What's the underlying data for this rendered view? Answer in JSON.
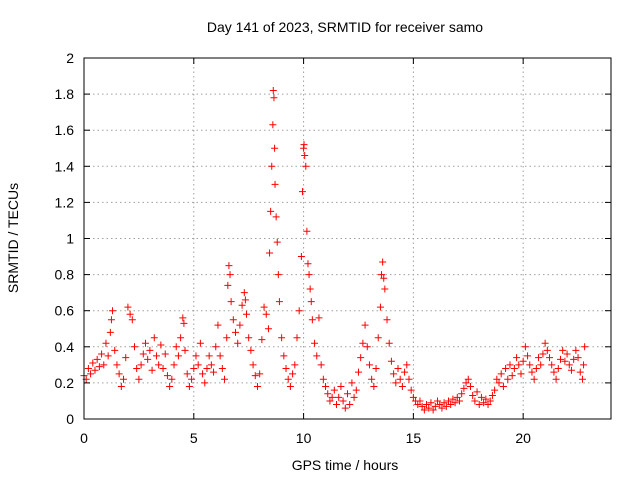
{
  "chart_data": {
    "type": "scatter",
    "title": "Day 141 of 2023, SRMTID for receiver samo",
    "xlabel": "GPS time / hours",
    "ylabel": "SRMTID / TECUs",
    "xlim": [
      0,
      24
    ],
    "ylim": [
      0,
      2
    ],
    "xticks": [
      "0",
      "5",
      "10",
      "15",
      "20"
    ],
    "yticks": [
      "0",
      "0.2",
      "0.4",
      "0.6",
      "0.8",
      "1",
      "1.2",
      "1.4",
      "1.6",
      "1.8",
      "2"
    ],
    "marker": "plus",
    "color": "#ff0000",
    "series": [
      {
        "name": "SRMTID",
        "points": [
          [
            0.0,
            0.24
          ],
          [
            0.1,
            0.22
          ],
          [
            0.2,
            0.28
          ],
          [
            0.3,
            0.25
          ],
          [
            0.4,
            0.31
          ],
          [
            0.5,
            0.27
          ],
          [
            0.6,
            0.33
          ],
          [
            0.7,
            0.29
          ],
          [
            0.8,
            0.36
          ],
          [
            0.9,
            0.3
          ],
          [
            1.0,
            0.42
          ],
          [
            1.1,
            0.35
          ],
          [
            1.2,
            0.48
          ],
          [
            1.25,
            0.55
          ],
          [
            1.3,
            0.6
          ],
          [
            1.4,
            0.38
          ],
          [
            1.5,
            0.3
          ],
          [
            1.6,
            0.25
          ],
          [
            1.7,
            0.18
          ],
          [
            1.8,
            0.22
          ],
          [
            1.9,
            0.34
          ],
          [
            2.0,
            0.62
          ],
          [
            2.1,
            0.58
          ],
          [
            2.2,
            0.55
          ],
          [
            2.3,
            0.4
          ],
          [
            2.4,
            0.28
          ],
          [
            2.5,
            0.22
          ],
          [
            2.6,
            0.3
          ],
          [
            2.7,
            0.36
          ],
          [
            2.8,
            0.42
          ],
          [
            2.9,
            0.33
          ],
          [
            3.0,
            0.38
          ],
          [
            3.1,
            0.27
          ],
          [
            3.2,
            0.45
          ],
          [
            3.3,
            0.35
          ],
          [
            3.4,
            0.3
          ],
          [
            3.5,
            0.41
          ],
          [
            3.6,
            0.28
          ],
          [
            3.7,
            0.36
          ],
          [
            3.8,
            0.24
          ],
          [
            3.9,
            0.18
          ],
          [
            4.0,
            0.22
          ],
          [
            4.1,
            0.3
          ],
          [
            4.2,
            0.4
          ],
          [
            4.3,
            0.35
          ],
          [
            4.4,
            0.45
          ],
          [
            4.5,
            0.56
          ],
          [
            4.55,
            0.53
          ],
          [
            4.6,
            0.38
          ],
          [
            4.7,
            0.25
          ],
          [
            4.8,
            0.18
          ],
          [
            4.9,
            0.22
          ],
          [
            5.0,
            0.28
          ],
          [
            5.1,
            0.35
          ],
          [
            5.2,
            0.3
          ],
          [
            5.3,
            0.42
          ],
          [
            5.4,
            0.25
          ],
          [
            5.5,
            0.2
          ],
          [
            5.6,
            0.28
          ],
          [
            5.7,
            0.35
          ],
          [
            5.8,
            0.3
          ],
          [
            5.9,
            0.26
          ],
          [
            6.0,
            0.4
          ],
          [
            6.1,
            0.52
          ],
          [
            6.2,
            0.35
          ],
          [
            6.3,
            0.28
          ],
          [
            6.4,
            0.22
          ],
          [
            6.5,
            0.45
          ],
          [
            6.55,
            0.74
          ],
          [
            6.6,
            0.85
          ],
          [
            6.65,
            0.8
          ],
          [
            6.7,
            0.65
          ],
          [
            6.8,
            0.55
          ],
          [
            6.9,
            0.48
          ],
          [
            7.0,
            0.42
          ],
          [
            7.1,
            0.52
          ],
          [
            7.2,
            0.63
          ],
          [
            7.3,
            0.7
          ],
          [
            7.35,
            0.66
          ],
          [
            7.4,
            0.58
          ],
          [
            7.5,
            0.45
          ],
          [
            7.6,
            0.38
          ],
          [
            7.7,
            0.3
          ],
          [
            7.8,
            0.24
          ],
          [
            7.9,
            0.18
          ],
          [
            8.0,
            0.25
          ],
          [
            8.1,
            0.44
          ],
          [
            8.2,
            0.62
          ],
          [
            8.3,
            0.58
          ],
          [
            8.4,
            0.5
          ],
          [
            8.45,
            0.92
          ],
          [
            8.5,
            1.15
          ],
          [
            8.55,
            1.4
          ],
          [
            8.6,
            1.63
          ],
          [
            8.62,
            1.82
          ],
          [
            8.65,
            1.78
          ],
          [
            8.68,
            1.5
          ],
          [
            8.7,
            1.3
          ],
          [
            8.75,
            1.12
          ],
          [
            8.8,
            0.98
          ],
          [
            8.85,
            0.8
          ],
          [
            8.9,
            0.65
          ],
          [
            9.0,
            0.45
          ],
          [
            9.1,
            0.35
          ],
          [
            9.2,
            0.28
          ],
          [
            9.3,
            0.22
          ],
          [
            9.4,
            0.18
          ],
          [
            9.5,
            0.25
          ],
          [
            9.6,
            0.3
          ],
          [
            9.7,
            0.45
          ],
          [
            9.8,
            0.6
          ],
          [
            9.9,
            0.9
          ],
          [
            9.95,
            1.26
          ],
          [
            10.0,
            1.5
          ],
          [
            10.02,
            1.52
          ],
          [
            10.05,
            1.46
          ],
          [
            10.1,
            1.4
          ],
          [
            10.15,
            1.04
          ],
          [
            10.2,
            0.86
          ],
          [
            10.25,
            0.8
          ],
          [
            10.3,
            0.72
          ],
          [
            10.35,
            0.65
          ],
          [
            10.4,
            0.55
          ],
          [
            10.5,
            0.42
          ],
          [
            10.6,
            0.35
          ],
          [
            10.7,
            0.56
          ],
          [
            10.8,
            0.3
          ],
          [
            10.9,
            0.22
          ],
          [
            11.0,
            0.18
          ],
          [
            11.1,
            0.14
          ],
          [
            11.2,
            0.1
          ],
          [
            11.3,
            0.12
          ],
          [
            11.4,
            0.16
          ],
          [
            11.5,
            0.08
          ],
          [
            11.6,
            0.12
          ],
          [
            11.7,
            0.18
          ],
          [
            11.8,
            0.1
          ],
          [
            11.9,
            0.06
          ],
          [
            12.0,
            0.14
          ],
          [
            12.1,
            0.08
          ],
          [
            12.2,
            0.2
          ],
          [
            12.3,
            0.12
          ],
          [
            12.4,
            0.16
          ],
          [
            12.5,
            0.26
          ],
          [
            12.6,
            0.34
          ],
          [
            12.7,
            0.42
          ],
          [
            12.8,
            0.52
          ],
          [
            12.9,
            0.4
          ],
          [
            13.0,
            0.3
          ],
          [
            13.1,
            0.22
          ],
          [
            13.2,
            0.18
          ],
          [
            13.3,
            0.28
          ],
          [
            13.4,
            0.45
          ],
          [
            13.5,
            0.62
          ],
          [
            13.55,
            0.8
          ],
          [
            13.6,
            0.87
          ],
          [
            13.65,
            0.78
          ],
          [
            13.7,
            0.72
          ],
          [
            13.8,
            0.55
          ],
          [
            13.9,
            0.42
          ],
          [
            14.0,
            0.32
          ],
          [
            14.1,
            0.25
          ],
          [
            14.2,
            0.2
          ],
          [
            14.3,
            0.28
          ],
          [
            14.4,
            0.22
          ],
          [
            14.5,
            0.18
          ],
          [
            14.6,
            0.26
          ],
          [
            14.7,
            0.3
          ],
          [
            14.8,
            0.22
          ],
          [
            14.9,
            0.16
          ],
          [
            15.0,
            0.12
          ],
          [
            15.1,
            0.1
          ],
          [
            15.2,
            0.08
          ],
          [
            15.3,
            0.1
          ],
          [
            15.4,
            0.07
          ],
          [
            15.5,
            0.05
          ],
          [
            15.6,
            0.08
          ],
          [
            15.7,
            0.06
          ],
          [
            15.8,
            0.09
          ],
          [
            15.9,
            0.05
          ],
          [
            16.0,
            0.07
          ],
          [
            16.1,
            0.1
          ],
          [
            16.2,
            0.08
          ],
          [
            16.3,
            0.06
          ],
          [
            16.4,
            0.09
          ],
          [
            16.5,
            0.07
          ],
          [
            16.6,
            0.1
          ],
          [
            16.7,
            0.08
          ],
          [
            16.8,
            0.11
          ],
          [
            16.9,
            0.09
          ],
          [
            17.0,
            0.12
          ],
          [
            17.1,
            0.1
          ],
          [
            17.2,
            0.14
          ],
          [
            17.3,
            0.17
          ],
          [
            17.4,
            0.2
          ],
          [
            17.5,
            0.22
          ],
          [
            17.6,
            0.18
          ],
          [
            17.7,
            0.13
          ],
          [
            17.8,
            0.1
          ],
          [
            17.9,
            0.15
          ],
          [
            18.0,
            0.08
          ],
          [
            18.1,
            0.12
          ],
          [
            18.2,
            0.09
          ],
          [
            18.3,
            0.11
          ],
          [
            18.4,
            0.08
          ],
          [
            18.5,
            0.1
          ],
          [
            18.6,
            0.13
          ],
          [
            18.7,
            0.16
          ],
          [
            18.8,
            0.22
          ],
          [
            18.9,
            0.2
          ],
          [
            19.0,
            0.25
          ],
          [
            19.1,
            0.18
          ],
          [
            19.2,
            0.28
          ],
          [
            19.3,
            0.22
          ],
          [
            19.4,
            0.3
          ],
          [
            19.5,
            0.24
          ],
          [
            19.6,
            0.28
          ],
          [
            19.7,
            0.34
          ],
          [
            19.8,
            0.3
          ],
          [
            19.9,
            0.25
          ],
          [
            20.0,
            0.32
          ],
          [
            20.1,
            0.4
          ],
          [
            20.2,
            0.35
          ],
          [
            20.3,
            0.3
          ],
          [
            20.4,
            0.26
          ],
          [
            20.5,
            0.22
          ],
          [
            20.6,
            0.28
          ],
          [
            20.7,
            0.34
          ],
          [
            20.8,
            0.3
          ],
          [
            20.9,
            0.36
          ],
          [
            21.0,
            0.42
          ],
          [
            21.1,
            0.38
          ],
          [
            21.2,
            0.34
          ],
          [
            21.3,
            0.3
          ],
          [
            21.4,
            0.26
          ],
          [
            21.5,
            0.22
          ],
          [
            21.6,
            0.28
          ],
          [
            21.7,
            0.33
          ],
          [
            21.8,
            0.38
          ],
          [
            21.9,
            0.32
          ],
          [
            22.0,
            0.36
          ],
          [
            22.1,
            0.3
          ],
          [
            22.2,
            0.27
          ],
          [
            22.3,
            0.33
          ],
          [
            22.4,
            0.38
          ],
          [
            22.5,
            0.34
          ],
          [
            22.6,
            0.26
          ],
          [
            22.7,
            0.22
          ],
          [
            22.75,
            0.3
          ],
          [
            22.8,
            0.4
          ]
        ]
      }
    ]
  }
}
